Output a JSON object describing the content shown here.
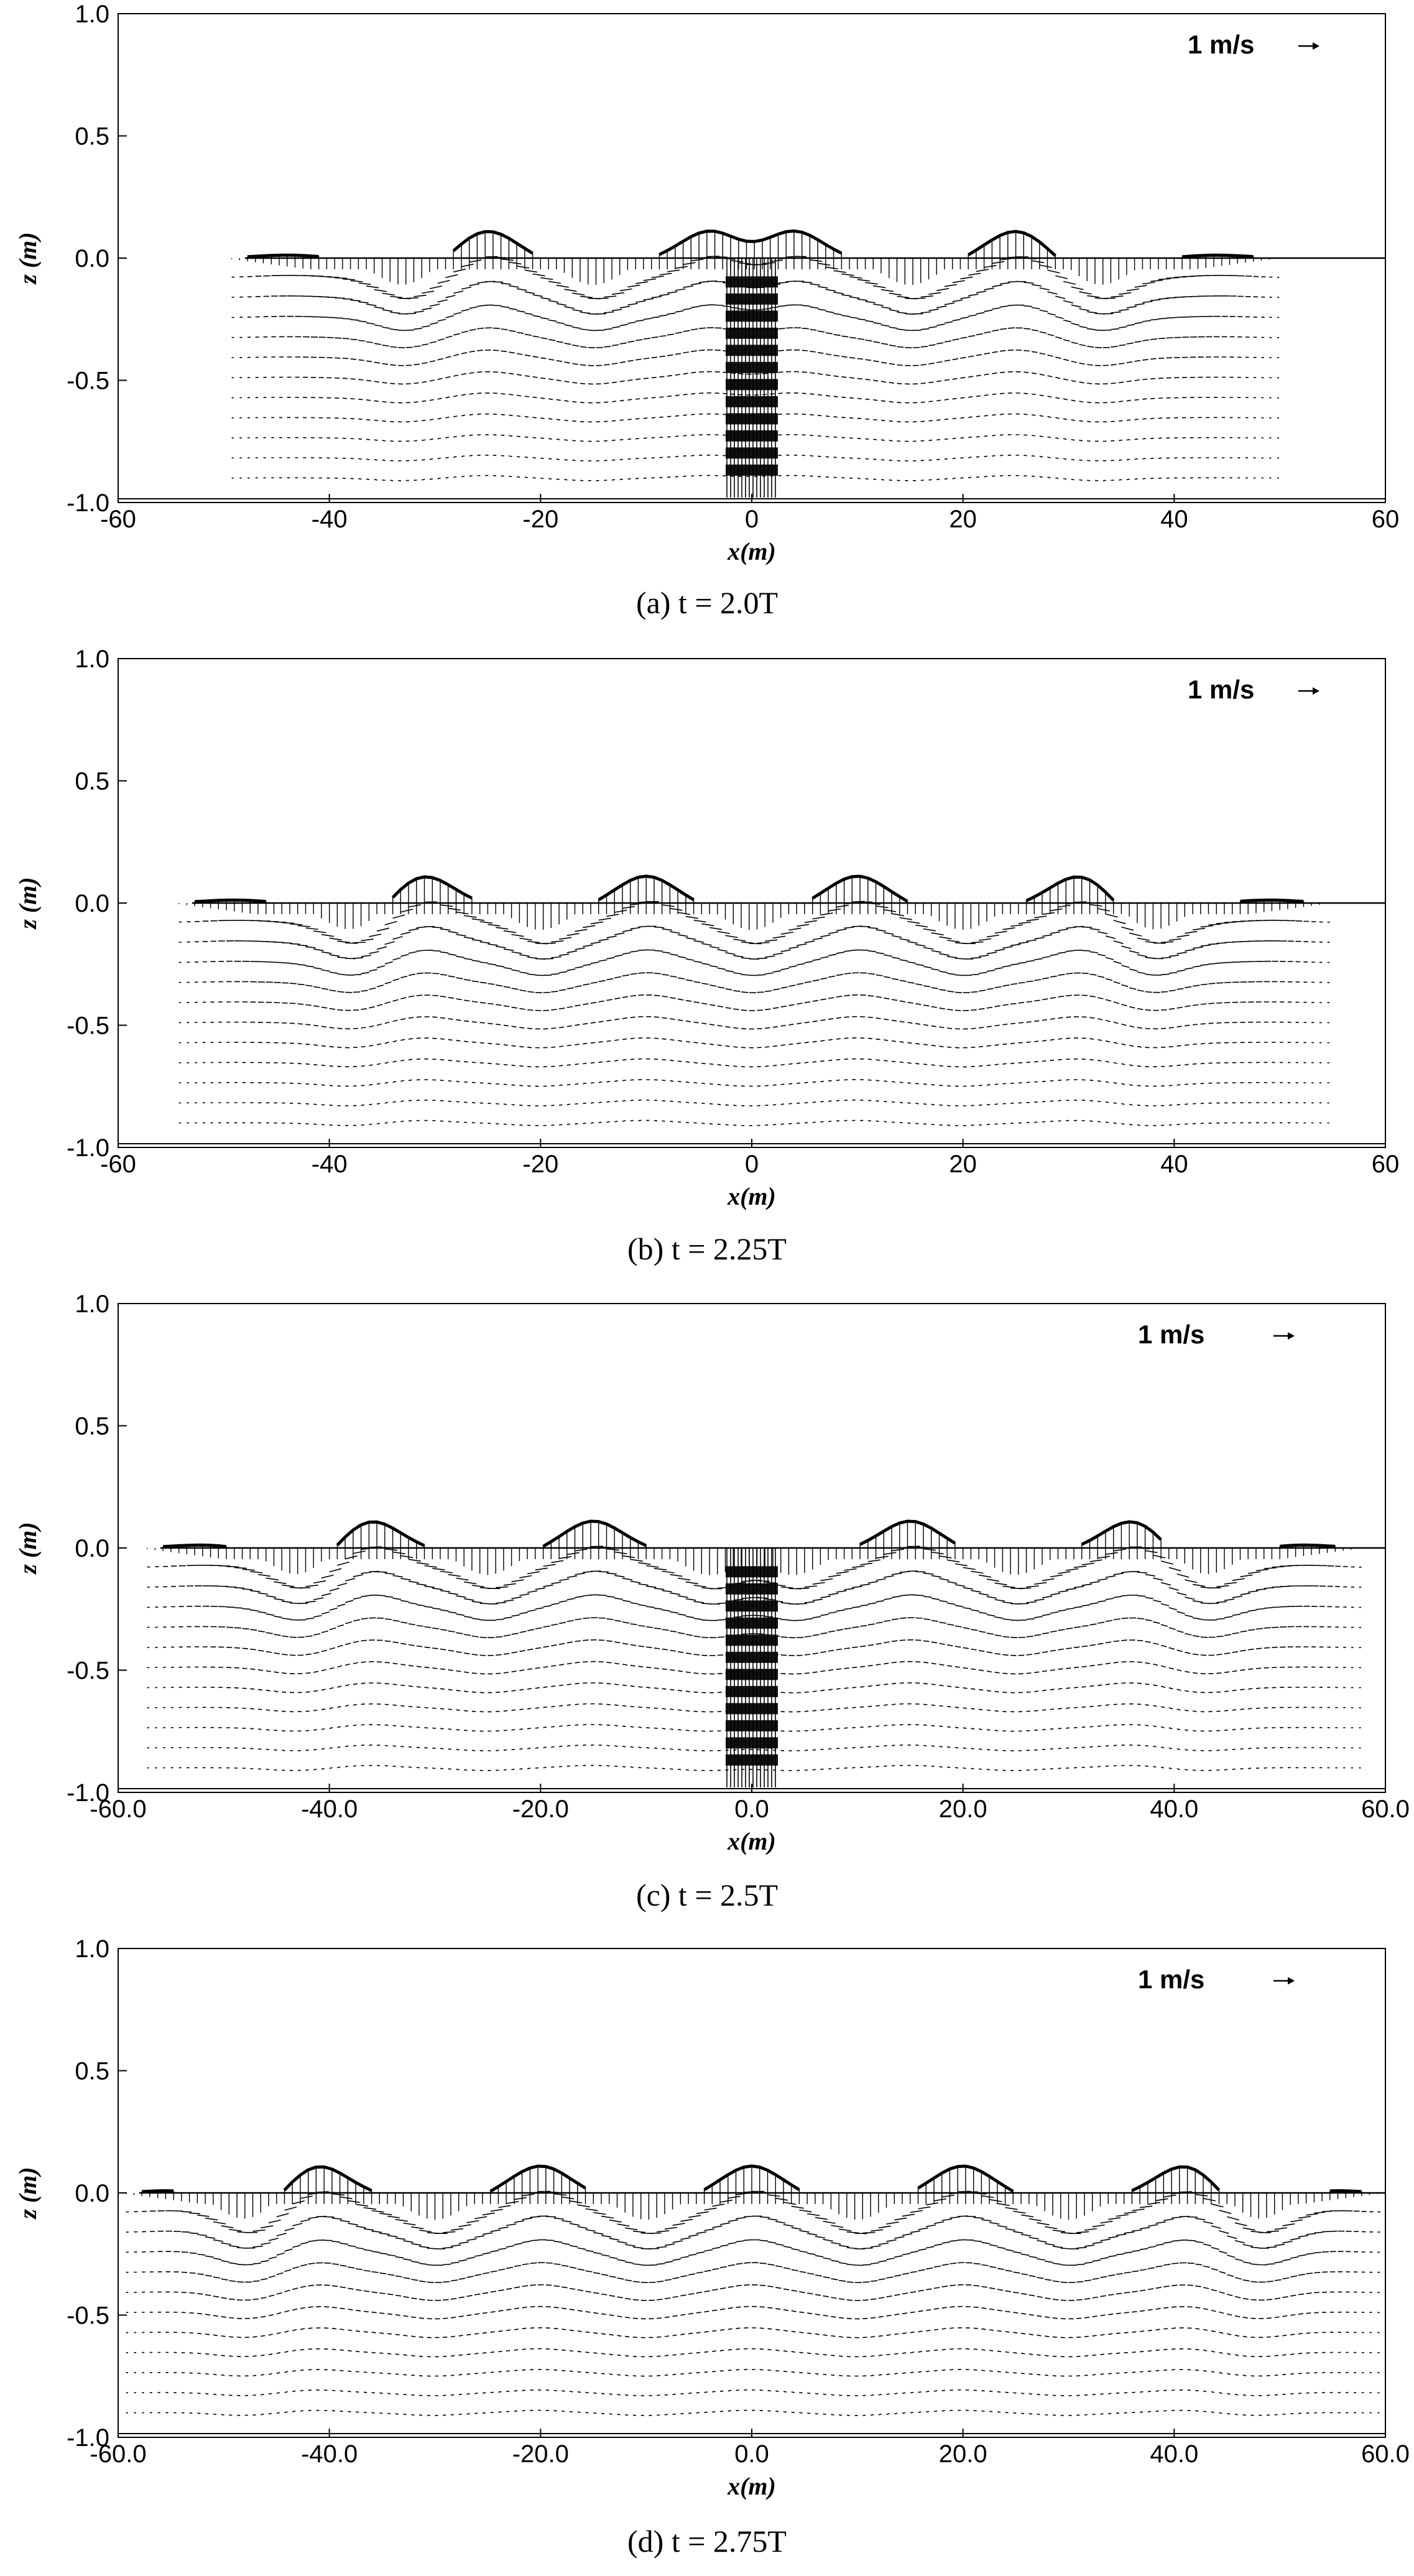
{
  "chart_data": [
    {
      "type": "vector_field",
      "caption": "(a)  t = 2.0T",
      "xlabel": "x(m)",
      "ylabel": "z (m)",
      "xlim": [
        -60,
        60
      ],
      "ylim": [
        -1.0,
        1.0
      ],
      "xticks": [
        "-60",
        "-40",
        "-20",
        "0",
        "20",
        "40",
        "60"
      ],
      "yticks": [
        "1.0",
        "0.5",
        "0.0",
        "-0.5",
        "-1.0"
      ],
      "reference_vector_label": "1 m/s",
      "water_extent": [
        -50,
        50
      ],
      "crests_x": [
        -25,
        -4,
        4,
        25
      ],
      "troughs_x": [
        -33,
        -15,
        15,
        33
      ],
      "central_jet_x": 0
    },
    {
      "type": "vector_field",
      "caption": "(b)  t = 2.25T",
      "xlabel": "x(m)",
      "ylabel": "z (m)",
      "xlim": [
        -60,
        60
      ],
      "ylim": [
        -1.0,
        1.0
      ],
      "xticks": [
        "-60",
        "-40",
        "-20",
        "0",
        "20",
        "40",
        "60"
      ],
      "yticks": [
        "1.0",
        "0.5",
        "0.0",
        "-0.5",
        "-1.0"
      ],
      "reference_vector_label": "1 m/s",
      "water_extent": [
        -55,
        55
      ],
      "crests_x": [
        -31,
        -10,
        10,
        31
      ],
      "troughs_x": [
        -38,
        -20,
        0,
        20,
        38
      ],
      "central_jet_x": null
    },
    {
      "type": "vector_field",
      "caption": "(c)  t = 2.5T",
      "xlabel": "x(m)",
      "ylabel": "z (m)",
      "xlim": [
        -60,
        60
      ],
      "ylim": [
        -1.0,
        1.0
      ],
      "xticks": [
        "-60.0",
        "-40.0",
        "-20.0",
        "0.0",
        "20.0",
        "40.0",
        "60.0"
      ],
      "yticks": [
        "1.0",
        "0.5",
        "0.0",
        "-0.5",
        "-1.0"
      ],
      "reference_vector_label": "1 m/s",
      "water_extent": [
        -58,
        58
      ],
      "crests_x": [
        -36,
        -15,
        15,
        36
      ],
      "troughs_x": [
        -43,
        -25,
        -4,
        4,
        25,
        43
      ],
      "central_jet_x": 0
    },
    {
      "type": "vector_field",
      "caption": "(d)  t = 2.75T",
      "xlabel": "x(m)",
      "ylabel": "z (m)",
      "xlim": [
        -60,
        60
      ],
      "ylim": [
        -1.0,
        1.0
      ],
      "xticks": [
        "-60.0",
        "-40.0",
        "-20.0",
        "0.0",
        "20.0",
        "40.0",
        "60.0"
      ],
      "yticks": [
        "1.0",
        "0.5",
        "0.0",
        "-0.5",
        "-1.0"
      ],
      "reference_vector_label": "1 m/s",
      "water_extent": [
        -60,
        60
      ],
      "crests_x": [
        -41,
        -20,
        0,
        20,
        41
      ],
      "troughs_x": [
        -48,
        -30,
        -10,
        10,
        30,
        48
      ],
      "central_jet_x": null
    }
  ]
}
